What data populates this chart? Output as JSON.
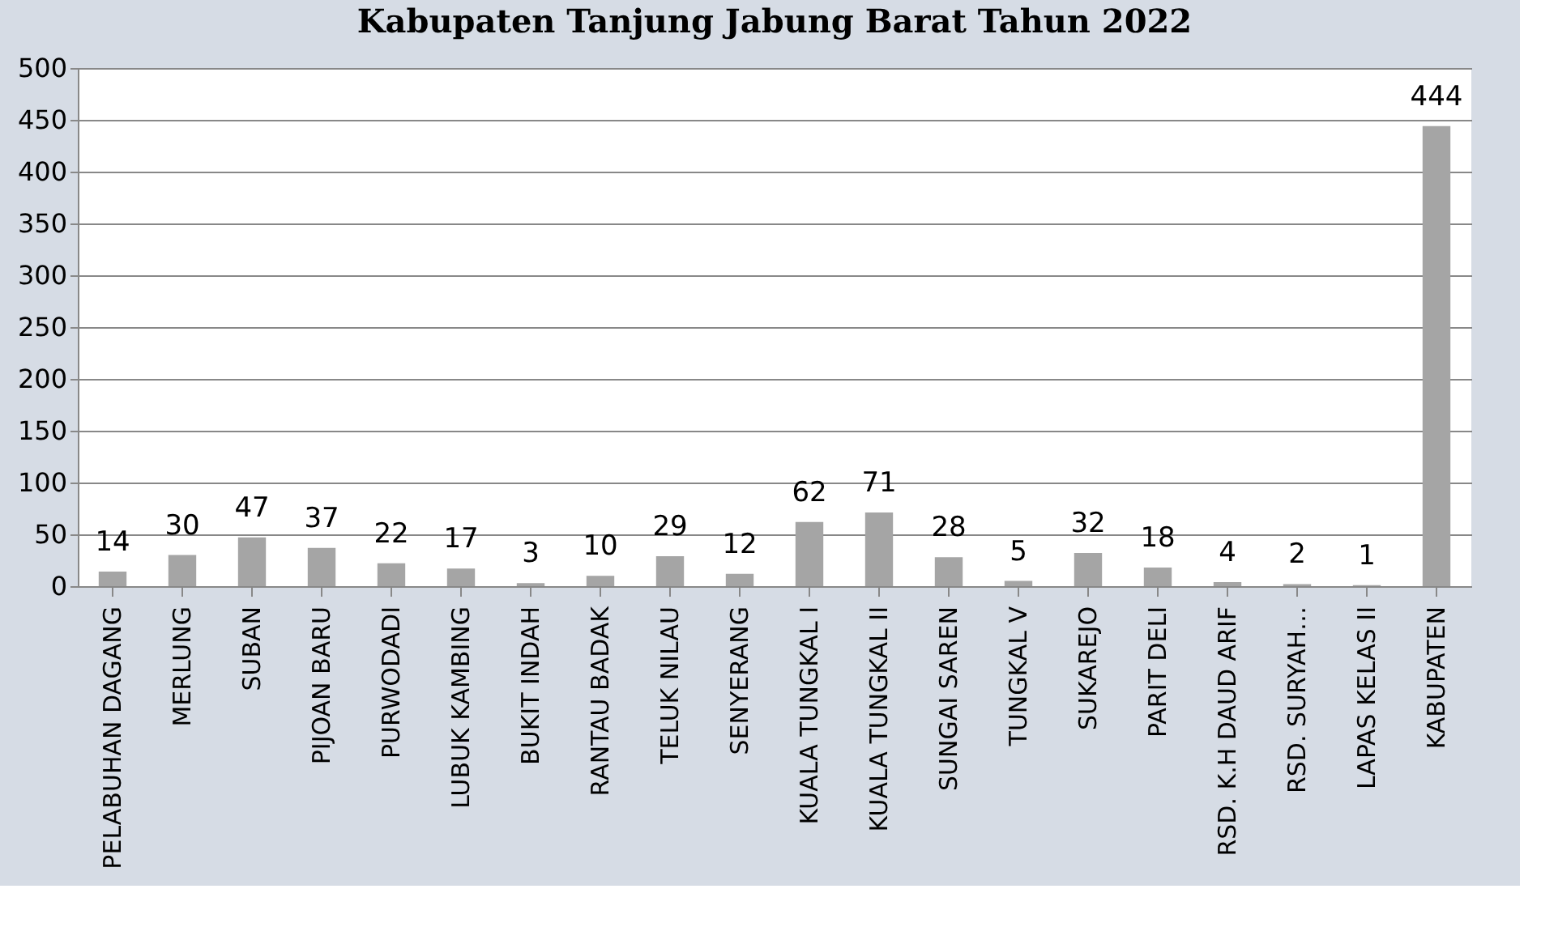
{
  "chart_data": {
    "type": "bar",
    "title": "Kabupaten Tanjung Jabung Barat Tahun 2022",
    "categories": [
      "PELABUHAN DAGANG",
      "MERLUNG",
      "SUBAN",
      "PIJOAN BARU",
      "PURWODADI",
      "LUBUK KAMBING",
      "BUKIT INDAH",
      "RANTAU BADAK",
      "TELUK NILAU",
      "SENYERANG",
      "KUALA TUNGKAL I",
      "KUALA TUNGKAL II",
      "SUNGAI SAREN",
      "TUNGKAL V",
      "SUKAREJO",
      "PARIT DELI",
      "RSD. K.H DAUD ARIF",
      "RSD. SURYAH…",
      "LAPAS KELAS II",
      "KABUPATEN"
    ],
    "values": [
      14,
      30,
      47,
      37,
      22,
      17,
      3,
      10,
      29,
      12,
      62,
      71,
      28,
      5,
      32,
      18,
      4,
      2,
      1,
      444
    ],
    "color": "#a5a5a5",
    "ylim": [
      0,
      500
    ],
    "yticks": [
      0,
      50,
      100,
      150,
      200,
      250,
      300,
      350,
      400,
      450,
      500
    ],
    "grid": "y",
    "data_labels": true
  }
}
